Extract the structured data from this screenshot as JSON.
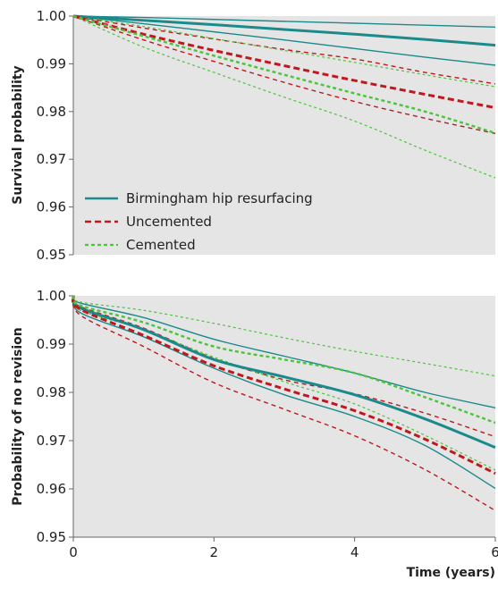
{
  "chart_data": [
    {
      "type": "line",
      "ylabel": "Survival probability",
      "xlabel": "",
      "xlim": [
        0,
        6
      ],
      "ylim": [
        0.95,
        1.0
      ],
      "yticks": [
        "1.00",
        "0.99",
        "0.98",
        "0.97",
        "0.96",
        "0.95"
      ],
      "xticks": [],
      "grid": false,
      "legend_position": "bottom-left",
      "legend": [
        {
          "name": "Birmingham hip resurfacing",
          "color": "#1a8a8a",
          "style": "solid"
        },
        {
          "name": "Uncemented",
          "color": "#c0181e",
          "style": "dashed"
        },
        {
          "name": "Cemented",
          "color": "#4cc43c",
          "style": "dotted"
        }
      ],
      "series": [
        {
          "group": "Birmingham hip resurfacing",
          "kind": "estimate",
          "x": [
            0,
            1,
            2,
            3,
            4,
            5,
            6
          ],
          "y": [
            1.0,
            0.9991,
            0.9982,
            0.9972,
            0.9962,
            0.9951,
            0.9939
          ]
        },
        {
          "group": "Birmingham hip resurfacing",
          "kind": "upper",
          "x": [
            0,
            1,
            2,
            3,
            4,
            5,
            6
          ],
          "y": [
            1.0,
            0.9997,
            0.9993,
            0.9989,
            0.9985,
            0.9981,
            0.9977
          ]
        },
        {
          "group": "Birmingham hip resurfacing",
          "kind": "lower",
          "x": [
            0,
            1,
            2,
            3,
            4,
            5,
            6
          ],
          "y": [
            1.0,
            0.9984,
            0.9967,
            0.995,
            0.9932,
            0.9914,
            0.9897
          ]
        },
        {
          "group": "Uncemented",
          "kind": "estimate",
          "x": [
            0,
            1,
            2,
            3,
            4,
            5,
            6
          ],
          "y": [
            1.0,
            0.9962,
            0.9928,
            0.9896,
            0.9865,
            0.9836,
            0.9808
          ]
        },
        {
          "group": "Uncemented",
          "kind": "upper",
          "x": [
            0,
            1,
            2,
            3,
            4,
            5,
            6
          ],
          "y": [
            1.0,
            0.9975,
            0.9952,
            0.993,
            0.991,
            0.9882,
            0.9858
          ]
        },
        {
          "group": "Uncemented",
          "kind": "lower",
          "x": [
            0,
            1,
            2,
            3,
            4,
            5,
            6
          ],
          "y": [
            1.0,
            0.995,
            0.9905,
            0.9861,
            0.9821,
            0.9786,
            0.9754
          ]
        },
        {
          "group": "Cemented",
          "kind": "estimate",
          "x": [
            0,
            1,
            2,
            3,
            4,
            5,
            6
          ],
          "y": [
            1.0,
            0.9958,
            0.9917,
            0.9877,
            0.9838,
            0.98,
            0.9755
          ]
        },
        {
          "group": "Cemented",
          "kind": "upper",
          "x": [
            0,
            1,
            2,
            3,
            4,
            5,
            6
          ],
          "y": [
            1.0,
            0.9978,
            0.9953,
            0.9928,
            0.9903,
            0.9877,
            0.9852
          ]
        },
        {
          "group": "Cemented",
          "kind": "lower",
          "x": [
            0,
            1,
            2,
            3,
            4,
            5,
            6
          ],
          "y": [
            1.0,
            0.9935,
            0.9882,
            0.983,
            0.978,
            0.9719,
            0.9661
          ]
        }
      ]
    },
    {
      "type": "line",
      "ylabel": "Probability of no revision",
      "xlabel": "Time (years)",
      "xlim": [
        0,
        6
      ],
      "ylim": [
        0.95,
        1.0
      ],
      "yticks": [
        "1.00",
        "0.99",
        "0.98",
        "0.97",
        "0.96",
        "0.95"
      ],
      "xticks": [
        "0",
        "2",
        "4",
        "6"
      ],
      "grid": false,
      "series": [
        {
          "group": "Birmingham hip resurfacing",
          "kind": "estimate",
          "x": [
            0,
            0.1,
            1,
            2,
            3,
            4,
            5,
            6
          ],
          "y": [
            1.0,
            0.9975,
            0.993,
            0.9868,
            0.9832,
            0.9795,
            0.9745,
            0.9686
          ]
        },
        {
          "group": "Birmingham hip resurfacing",
          "kind": "upper",
          "x": [
            0,
            0.1,
            1,
            2,
            3,
            4,
            5,
            6
          ],
          "y": [
            1.0,
            0.9985,
            0.9955,
            0.991,
            0.9875,
            0.984,
            0.98,
            0.9768
          ]
        },
        {
          "group": "Birmingham hip resurfacing",
          "kind": "lower",
          "x": [
            0,
            0.1,
            1,
            2,
            3,
            4,
            5,
            6
          ],
          "y": [
            1.0,
            0.9965,
            0.9915,
            0.985,
            0.9795,
            0.975,
            0.969,
            0.9601
          ]
        },
        {
          "group": "Uncemented",
          "kind": "estimate",
          "x": [
            0,
            0.1,
            1,
            2,
            3,
            4,
            5,
            6
          ],
          "y": [
            1.0,
            0.9972,
            0.9918,
            0.9855,
            0.9807,
            0.9762,
            0.9703,
            0.9632
          ]
        },
        {
          "group": "Uncemented",
          "kind": "upper",
          "x": [
            0,
            0.1,
            1,
            2,
            3,
            4,
            5,
            6
          ],
          "y": [
            1.0,
            0.9978,
            0.9933,
            0.987,
            0.9826,
            0.9797,
            0.9757,
            0.9708
          ]
        },
        {
          "group": "Uncemented",
          "kind": "lower",
          "x": [
            0,
            0.1,
            1,
            2,
            3,
            4,
            5,
            6
          ],
          "y": [
            1.0,
            0.996,
            0.9895,
            0.982,
            0.9765,
            0.971,
            0.964,
            0.9555
          ]
        },
        {
          "group": "Cemented",
          "kind": "estimate",
          "x": [
            0,
            0.1,
            1,
            2,
            3,
            4,
            5,
            6
          ],
          "y": [
            1.0,
            0.998,
            0.9945,
            0.9895,
            0.9868,
            0.984,
            0.979,
            0.9737
          ]
        },
        {
          "group": "Cemented",
          "kind": "upper",
          "x": [
            0,
            0.1,
            1,
            2,
            3,
            4,
            5,
            6
          ],
          "y": [
            1.0,
            0.9987,
            0.997,
            0.9943,
            0.9913,
            0.9885,
            0.986,
            0.9834
          ]
        },
        {
          "group": "Cemented",
          "kind": "lower",
          "x": [
            0,
            0.1,
            1,
            2,
            3,
            4,
            5,
            6
          ],
          "y": [
            1.0,
            0.997,
            0.993,
            0.9873,
            0.9822,
            0.9776,
            0.9711,
            0.9639
          ]
        }
      ]
    }
  ]
}
